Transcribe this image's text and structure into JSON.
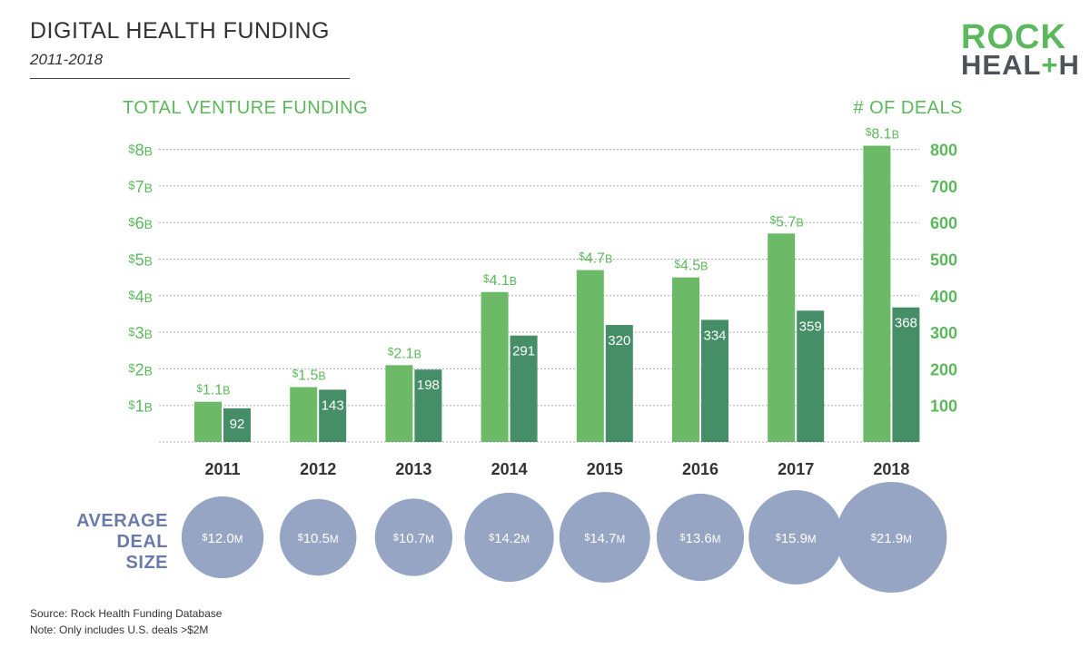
{
  "header": {
    "title": "DIGITAL HEALTH FUNDING",
    "subtitle": "2011-2018"
  },
  "logo": {
    "line1": "ROCK",
    "line2_prefix": "HEAL",
    "line2_plus": "+",
    "line2_suffix": "H"
  },
  "footer": {
    "source": "Source: Rock Health Funding Database",
    "note": "Note: Only includes U.S. deals >$2M"
  },
  "colors": {
    "funding": "#6cb967",
    "deals": "#458e68",
    "bubble": "#96a5c4",
    "label_green": "#5cb85c",
    "avg_label": "#6b7ba9"
  },
  "chart_data": {
    "type": "bar",
    "categories": [
      "2011",
      "2012",
      "2013",
      "2014",
      "2015",
      "2016",
      "2017",
      "2018"
    ],
    "left_axis_title": "TOTAL VENTURE FUNDING",
    "right_axis_title": "# OF DEALS",
    "left_ticks": [
      "$1B",
      "$2B",
      "$3B",
      "$4B",
      "$5B",
      "$6B",
      "$7B",
      "$8B"
    ],
    "right_ticks": [
      "100",
      "200",
      "300",
      "400",
      "500",
      "600",
      "700",
      "800"
    ],
    "ylim_funding": [
      0,
      8
    ],
    "ylim_deals": [
      0,
      800
    ],
    "grid": true,
    "series": [
      {
        "name": "Total Venture Funding",
        "axis": "left",
        "values": [
          1.1,
          1.5,
          2.1,
          4.1,
          4.7,
          4.5,
          5.7,
          8.1
        ],
        "labels": [
          "$1.1B",
          "$1.5B",
          "$2.1B",
          "$4.1B",
          "$4.7B",
          "$4.5B",
          "$5.7B",
          "$8.1B"
        ]
      },
      {
        "name": "# of Deals",
        "axis": "right",
        "values": [
          92,
          143,
          198,
          291,
          320,
          334,
          359,
          368
        ],
        "labels": [
          "92",
          "143",
          "198",
          "291",
          "320",
          "334",
          "359",
          "368"
        ]
      }
    ],
    "average_deal_size": {
      "label_lines": [
        "AVERAGE",
        "DEAL",
        "SIZE"
      ],
      "values": [
        12.0,
        10.5,
        10.7,
        14.2,
        14.7,
        13.6,
        15.9,
        21.9
      ],
      "labels": [
        "$12.0M",
        "$10.5M",
        "$10.7M",
        "$14.2M",
        "$14.7M",
        "$13.6M",
        "$15.9M",
        "$21.9M"
      ]
    }
  }
}
